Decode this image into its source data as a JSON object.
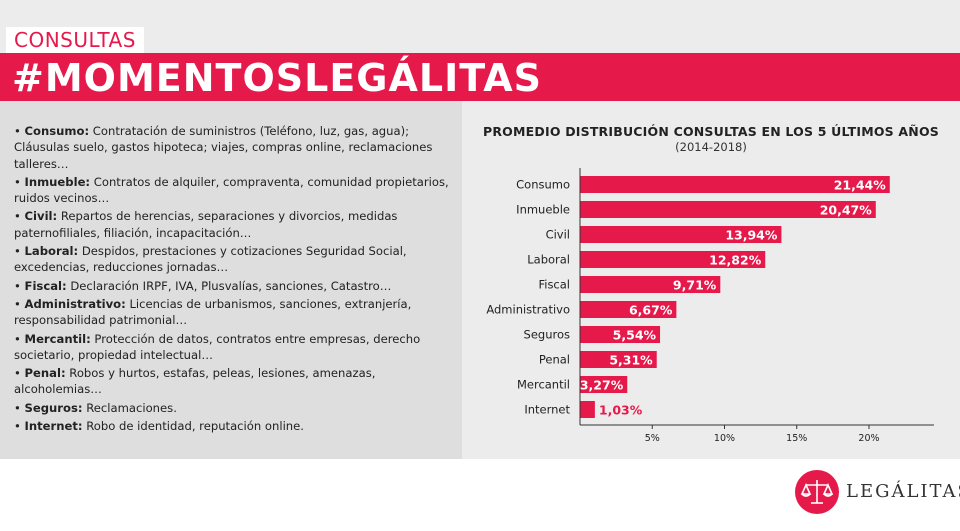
{
  "header": {
    "tag": "CONSULTAS",
    "title": "#MOMENTOSLEGÁLITAS"
  },
  "items": [
    {
      "label": "Consumo:",
      "text": "Contratación de suministros (Teléfono, luz, gas, agua); Cláusulas suelo, gastos hipoteca; viajes, compras online, reclamaciones talleres…"
    },
    {
      "label": "Inmueble:",
      "text": "Contratos de alquiler, compraventa, comunidad propietarios, ruidos vecinos…"
    },
    {
      "label": "Civil:",
      "text": "Repartos de herencias, separaciones y divorcios, medidas paternofiliales, filiación, incapacitación…"
    },
    {
      "label": "Laboral:",
      "text": "Despidos, prestaciones y cotizaciones Seguridad Social, excedencias, reducciones jornadas…"
    },
    {
      "label": "Fiscal:",
      "text": "Declaración IRPF, IVA, Plusvalías, sanciones, Catastro…"
    },
    {
      "label": "Administrativo:",
      "text": "Licencias de urbanismos, sanciones, extranjería, responsabilidad patrimonial…"
    },
    {
      "label": "Mercantil:",
      "text": "Protección de datos, contratos entre empresas, derecho societario, propiedad intelectual…"
    },
    {
      "label": "Penal:",
      "text": "Robos y hurtos, estafas, peleas, lesiones, amenazas, alcoholemias…"
    },
    {
      "label": "Seguros:",
      "text": "Reclamaciones."
    },
    {
      "label": "Internet:",
      "text": "Robo de identidad, reputación online."
    }
  ],
  "chart_data": {
    "type": "bar",
    "orientation": "horizontal",
    "title": "PROMEDIO DISTRIBUCIÓN CONSULTAS EN LOS 5 ÚLTIMOS AÑOS",
    "subtitle": "(2014-2018)",
    "categories": [
      "Consumo",
      "Inmueble",
      "Civil",
      "Laboral",
      "Fiscal",
      "Administrativo",
      "Seguros",
      "Penal",
      "Mercantil",
      "Internet"
    ],
    "values": [
      21.44,
      20.47,
      13.94,
      12.82,
      9.71,
      6.67,
      5.54,
      5.31,
      3.27,
      1.03
    ],
    "value_labels": [
      "21,44%",
      "20,47%",
      "13,94%",
      "12,82%",
      "9,71%",
      "6,67%",
      "5,54%",
      "5,31%",
      "3,27%",
      "1,03%"
    ],
    "x_ticks": [
      5,
      10,
      15,
      20
    ],
    "x_tick_labels": [
      "5%",
      "10%",
      "15%",
      "20%"
    ],
    "xlim": [
      0,
      24.5
    ],
    "bar_color": "#e6194b"
  },
  "brand": {
    "logo_text": "LEGÁLITAS",
    "logo_icon": "scales-of-justice-icon",
    "accent": "#e6194b"
  }
}
